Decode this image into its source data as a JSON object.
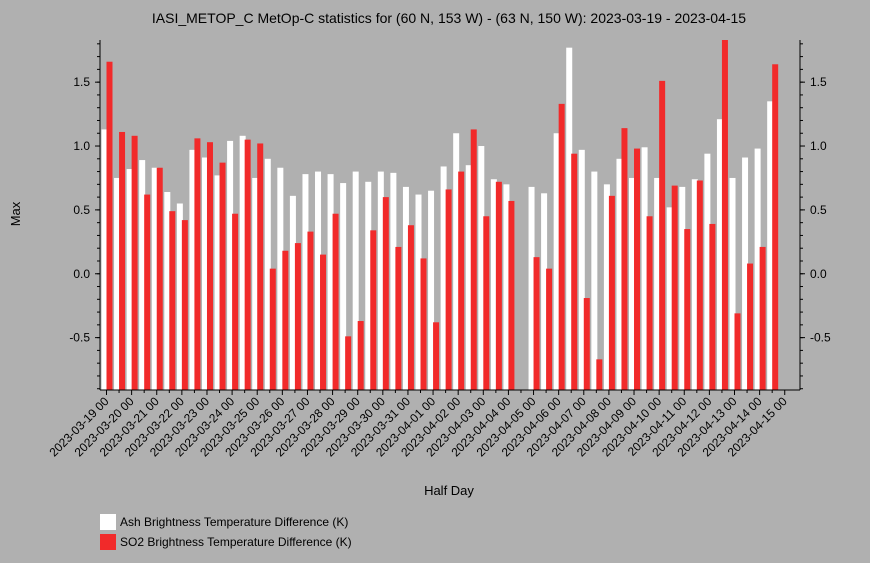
{
  "chart_data": {
    "type": "bar",
    "title": "IASI_METOP_C MetOp-C statistics for (60 N, 153 W) - (63 N, 150 W): 2023-03-19 - 2023-04-15",
    "xlabel": "Half Day",
    "ylabel": "Max",
    "ylim": [
      -0.91,
      1.83
    ],
    "yticks": [
      "-0.5",
      "0.0",
      "0.5",
      "1.0",
      "1.5"
    ],
    "grid": false,
    "legend_position": "bottom-left",
    "categories": [
      "2023-03-19 00",
      "2023-03-19 12",
      "2023-03-20 00",
      "2023-03-20 12",
      "2023-03-21 00",
      "2023-03-21 12",
      "2023-03-22 00",
      "2023-03-22 12",
      "2023-03-23 00",
      "2023-03-23 12",
      "2023-03-24 00",
      "2023-03-24 12",
      "2023-03-25 00",
      "2023-03-25 12",
      "2023-03-26 00",
      "2023-03-26 12",
      "2023-03-27 00",
      "2023-03-27 12",
      "2023-03-28 00",
      "2023-03-28 12",
      "2023-03-29 00",
      "2023-03-29 12",
      "2023-03-30 00",
      "2023-03-30 12",
      "2023-03-31 00",
      "2023-03-31 12",
      "2023-04-01 00",
      "2023-04-01 12",
      "2023-04-02 00",
      "2023-04-02 12",
      "2023-04-03 00",
      "2023-04-03 12",
      "2023-04-04 00",
      "2023-04-04 12",
      "2023-04-05 00",
      "2023-04-05 12",
      "2023-04-06 00",
      "2023-04-06 12",
      "2023-04-07 00",
      "2023-04-07 12",
      "2023-04-08 00",
      "2023-04-08 12",
      "2023-04-09 00",
      "2023-04-09 12",
      "2023-04-10 00",
      "2023-04-10 12",
      "2023-04-11 00",
      "2023-04-11 12",
      "2023-04-12 00",
      "2023-04-12 12",
      "2023-04-13 00",
      "2023-04-13 12",
      "2023-04-14 00",
      "2023-04-14 12",
      "2023-04-15 00"
    ],
    "tick_labels": [
      "2023-03-19 00",
      "2023-03-20 00",
      "2023-03-21 00",
      "2023-03-22 00",
      "2023-03-23 00",
      "2023-03-24 00",
      "2023-03-25 00",
      "2023-03-26 00",
      "2023-03-27 00",
      "2023-03-28 00",
      "2023-03-29 00",
      "2023-03-30 00",
      "2023-03-31 00",
      "2023-04-01 00",
      "2023-04-02 00",
      "2023-04-03 00",
      "2023-04-04 00",
      "2023-04-05 00",
      "2023-04-06 00",
      "2023-04-07 00",
      "2023-04-08 00",
      "2023-04-09 00",
      "2023-04-10 00",
      "2023-04-11 00",
      "2023-04-12 00",
      "2023-04-13 00",
      "2023-04-14 00",
      "2023-04-15 00"
    ],
    "series": [
      {
        "name": "Ash Brightness Temperature Difference (K)",
        "color": "#ffffff",
        "values": [
          1.13,
          0.75,
          0.82,
          0.89,
          0.83,
          0.64,
          0.55,
          0.97,
          0.91,
          0.77,
          1.04,
          1.08,
          0.75,
          0.9,
          0.83,
          0.61,
          0.78,
          0.8,
          0.78,
          0.71,
          0.8,
          0.72,
          0.8,
          0.79,
          0.68,
          0.62,
          0.65,
          0.84,
          1.1,
          0.85,
          1.0,
          0.74,
          0.7,
          null,
          0.68,
          0.63,
          1.1,
          1.77,
          0.97,
          0.8,
          0.7,
          0.9,
          0.75,
          0.99,
          0.75,
          0.52,
          0.68,
          0.74,
          0.94,
          1.21,
          0.75,
          0.91,
          0.98,
          1.35,
          null
        ]
      },
      {
        "name": "SO2 Brightness Temperature Difference (K)",
        "color": "#f12a2a",
        "values": [
          1.66,
          1.11,
          1.08,
          0.62,
          0.83,
          0.49,
          0.42,
          1.06,
          1.03,
          0.87,
          0.47,
          1.05,
          1.02,
          0.04,
          0.18,
          0.24,
          0.33,
          0.15,
          0.47,
          -0.49,
          -0.37,
          0.34,
          0.6,
          0.21,
          0.38,
          0.12,
          -0.38,
          0.66,
          0.8,
          1.13,
          0.45,
          0.72,
          0.57,
          null,
          0.13,
          0.04,
          1.33,
          0.94,
          -0.19,
          -0.67,
          0.61,
          1.14,
          0.98,
          0.45,
          1.51,
          0.69,
          0.35,
          0.73,
          0.39,
          1.84,
          -0.31,
          0.08,
          0.21,
          1.64,
          null
        ]
      }
    ]
  }
}
